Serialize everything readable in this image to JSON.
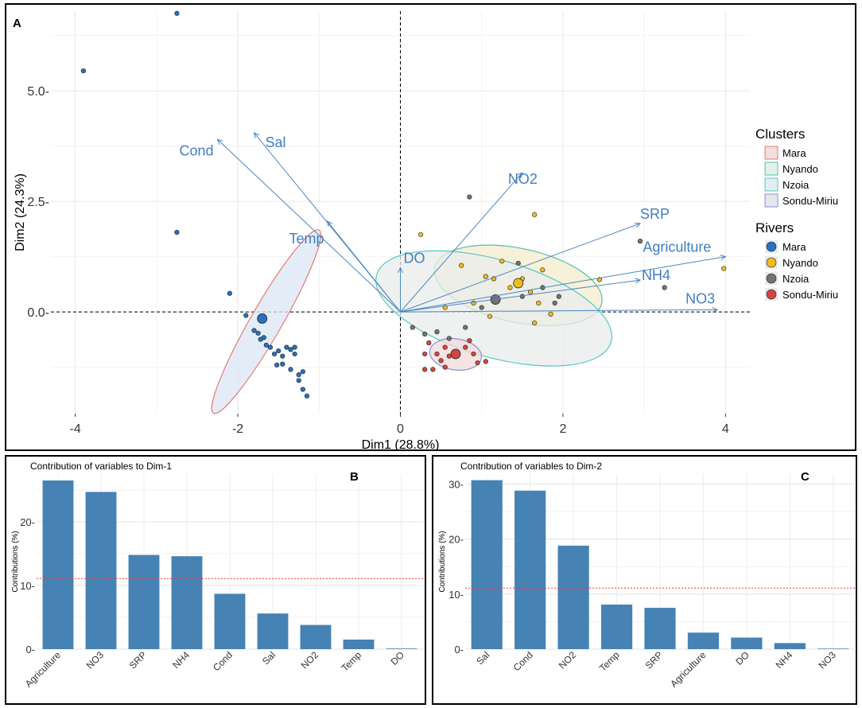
{
  "chart_data": [
    {
      "type": "scatter",
      "panel_label": "A",
      "title": "",
      "xlabel": "Dim1 (28.8%)",
      "ylabel": "Dim2 (24.3%)",
      "xlim": [
        -4.3,
        4.3
      ],
      "ylim": [
        -2.3,
        6.8
      ],
      "xticks": [
        -4,
        -2,
        0,
        2,
        4
      ],
      "xtick_labels": [
        "-4",
        "-2",
        "0",
        "2",
        "4"
      ],
      "yticks": [
        0,
        2.5,
        5
      ],
      "ytick_labels": [
        "0.0-",
        "2.5-",
        "5.0-"
      ],
      "variables": [
        {
          "name": "Cond",
          "x": -2.25,
          "y": 3.9
        },
        {
          "name": "Sal",
          "x": -1.8,
          "y": 4.05
        },
        {
          "name": "Temp",
          "x": -0.9,
          "y": 2.05
        },
        {
          "name": "DO",
          "x": 0.0,
          "y": 1.0
        },
        {
          "name": "NO2",
          "x": 1.5,
          "y": 3.15
        },
        {
          "name": "SRP",
          "x": 2.95,
          "y": 2.0
        },
        {
          "name": "Agriculture",
          "x": 4.0,
          "y": 1.25
        },
        {
          "name": "NH4",
          "x": 2.95,
          "y": 0.72
        },
        {
          "name": "NO3",
          "x": 3.9,
          "y": 0.05
        }
      ],
      "series": [
        {
          "name": "Mara",
          "color": "#2770c2",
          "points": [
            [
              -3.9,
              5.45
            ],
            [
              -2.75,
              6.75
            ],
            [
              -2.75,
              1.8
            ],
            [
              -2.1,
              0.42
            ],
            [
              -1.9,
              -0.08
            ],
            [
              -1.8,
              -0.42
            ],
            [
              -1.75,
              -0.48
            ],
            [
              -1.72,
              -0.62
            ],
            [
              -1.68,
              -0.58
            ],
            [
              -1.65,
              -0.75
            ],
            [
              -1.6,
              -0.8
            ],
            [
              -1.55,
              -0.95
            ],
            [
              -1.5,
              -0.88
            ],
            [
              -1.45,
              -1.0
            ],
            [
              -1.52,
              -1.2
            ],
            [
              -1.45,
              -1.18
            ],
            [
              -1.4,
              -0.8
            ],
            [
              -1.35,
              -0.85
            ],
            [
              -1.3,
              -0.8
            ],
            [
              -1.35,
              -1.3
            ],
            [
              -1.3,
              -0.95
            ],
            [
              -1.25,
              -1.42
            ],
            [
              -1.2,
              -1.35
            ],
            [
              -1.25,
              -1.55
            ],
            [
              -1.2,
              -1.75
            ],
            [
              -1.15,
              -1.9
            ]
          ],
          "centroid": [
            -1.7,
            -0.15
          ]
        },
        {
          "name": "Nyando",
          "color": "#f2bb1a",
          "points": [
            [
              0.25,
              1.75
            ],
            [
              1.65,
              2.2
            ],
            [
              0.75,
              1.05
            ],
            [
              1.25,
              1.15
            ],
            [
              1.05,
              0.8
            ],
            [
              1.15,
              0.75
            ],
            [
              1.5,
              0.75
            ],
            [
              1.35,
              0.55
            ],
            [
              1.6,
              0.45
            ],
            [
              1.75,
              0.95
            ],
            [
              1.7,
              0.2
            ],
            [
              1.85,
              -0.05
            ],
            [
              2.45,
              0.73
            ],
            [
              3.98,
              0.98
            ],
            [
              1.1,
              -0.1
            ],
            [
              0.9,
              0.2
            ],
            [
              0.55,
              0.1
            ],
            [
              1.65,
              -0.25
            ]
          ],
          "centroid": [
            1.45,
            0.65
          ]
        },
        {
          "name": "Nzoia",
          "color": "#737373",
          "points": [
            [
              0.85,
              2.6
            ],
            [
              2.95,
              1.6
            ],
            [
              3.25,
              0.55
            ],
            [
              1.45,
              1.1
            ],
            [
              1.75,
              0.55
            ],
            [
              1.5,
              0.35
            ],
            [
              1.2,
              0.3
            ],
            [
              1.0,
              0.1
            ],
            [
              0.15,
              -0.35
            ],
            [
              0.3,
              -0.5
            ],
            [
              0.45,
              -0.45
            ],
            [
              0.6,
              -0.6
            ],
            [
              0.8,
              -0.35
            ],
            [
              1.9,
              0.2
            ],
            [
              1.95,
              0.35
            ]
          ],
          "centroid": [
            1.17,
            0.28
          ]
        },
        {
          "name": "Sondu-Miriu",
          "color": "#d2463e",
          "points": [
            [
              0.35,
              -0.7
            ],
            [
              0.45,
              -0.95
            ],
            [
              0.3,
              -0.95
            ],
            [
              0.5,
              -1.1
            ],
            [
              0.4,
              -1.3
            ],
            [
              0.3,
              -1.3
            ],
            [
              0.6,
              -1.0
            ],
            [
              0.55,
              -0.8
            ],
            [
              0.8,
              -0.8
            ],
            [
              0.85,
              -0.65
            ],
            [
              0.9,
              -0.95
            ],
            [
              1.05,
              -1.12
            ],
            [
              0.95,
              -1.15
            ],
            [
              0.55,
              -1.25
            ]
          ],
          "centroid": [
            0.68,
            -0.95
          ]
        }
      ],
      "ellipses": [
        {
          "name": "Mara",
          "stroke": "#e8796e",
          "fill": "#dbe7f4",
          "cx": -1.65,
          "cy": -0.22,
          "rx": 1.3,
          "ry": 0.16,
          "angle_deg": -60
        },
        {
          "name": "Nyando",
          "stroke": "#54c0a0",
          "fill": "#f6eccd",
          "cx": 1.45,
          "cy": 0.6,
          "rx": 1.05,
          "ry": 0.38,
          "angle_deg": 12
        },
        {
          "name": "Nzoia",
          "stroke": "#54c9c4",
          "fill": "#e9ecec",
          "cx": 1.15,
          "cy": 0.08,
          "rx": 1.5,
          "ry": 0.5,
          "angle_deg": 16
        },
        {
          "name": "Sondu-Miriu",
          "stroke": "#8b8fd6",
          "fill": "#f3dadb",
          "cx": 0.68,
          "cy": -0.96,
          "rx": 0.32,
          "ry": 0.16,
          "angle_deg": 8
        }
      ],
      "legend": {
        "clusters_title": "Clusters",
        "clusters": [
          {
            "label": "Mara",
            "stroke": "#e8796e",
            "fill": "#f1dedd"
          },
          {
            "label": "Nyando",
            "stroke": "#54c0a0",
            "fill": "#e3f0e9"
          },
          {
            "label": "Nzoia",
            "stroke": "#54c9c4",
            "fill": "#e1eff0"
          },
          {
            "label": "Sondu-Miriu",
            "stroke": "#8b8fd6",
            "fill": "#e6e6ef"
          }
        ],
        "rivers_title": "Rivers",
        "rivers": [
          {
            "label": "Mara",
            "color": "#2770c2"
          },
          {
            "label": "Nyando",
            "color": "#f2bb1a"
          },
          {
            "label": "Nzoia",
            "color": "#737373"
          },
          {
            "label": "Sondu-Miriu",
            "color": "#d2463e"
          }
        ]
      },
      "arrow_color": "#4a86c0",
      "label_color": "#3f7fbf"
    },
    {
      "type": "bar",
      "panel_label": "B",
      "title": "Contribution of variables to Dim-1",
      "ylabel": "Contributions (%)",
      "xlabel": "",
      "categories": [
        "Agriculture",
        "NO3",
        "SRP",
        "NH4",
        "Cond",
        "Sal",
        "NO2",
        "Temp",
        "DO"
      ],
      "values": [
        26.5,
        24.7,
        14.8,
        14.6,
        8.7,
        5.6,
        3.8,
        1.5,
        0.1
      ],
      "ylim": [
        0,
        27.5
      ],
      "yticks": [
        0,
        10,
        20
      ],
      "ytick_labels": [
        "0-",
        "10-",
        "20-"
      ],
      "reference_line": 11.1,
      "bar_color": "#4682b4",
      "ref_color": "#ff3333"
    },
    {
      "type": "bar",
      "panel_label": "C",
      "title": "Contribution of variables to Dim-2",
      "ylabel": "Contributions (%)",
      "xlabel": "",
      "categories": [
        "Sal",
        "Cond",
        "NO2",
        "Temp",
        "SRP",
        "Agriculture",
        "DO",
        "NH4",
        "NO3"
      ],
      "values": [
        30.7,
        28.8,
        18.8,
        8.1,
        7.5,
        3.0,
        2.1,
        1.1,
        0.1
      ],
      "ylim": [
        0,
        31.8
      ],
      "yticks": [
        0,
        10,
        20,
        30
      ],
      "ytick_labels": [
        "0-",
        "10-",
        "20-",
        "30-"
      ],
      "reference_line": 11.1,
      "bar_color": "#4682b4",
      "ref_color": "#ff3333"
    }
  ]
}
